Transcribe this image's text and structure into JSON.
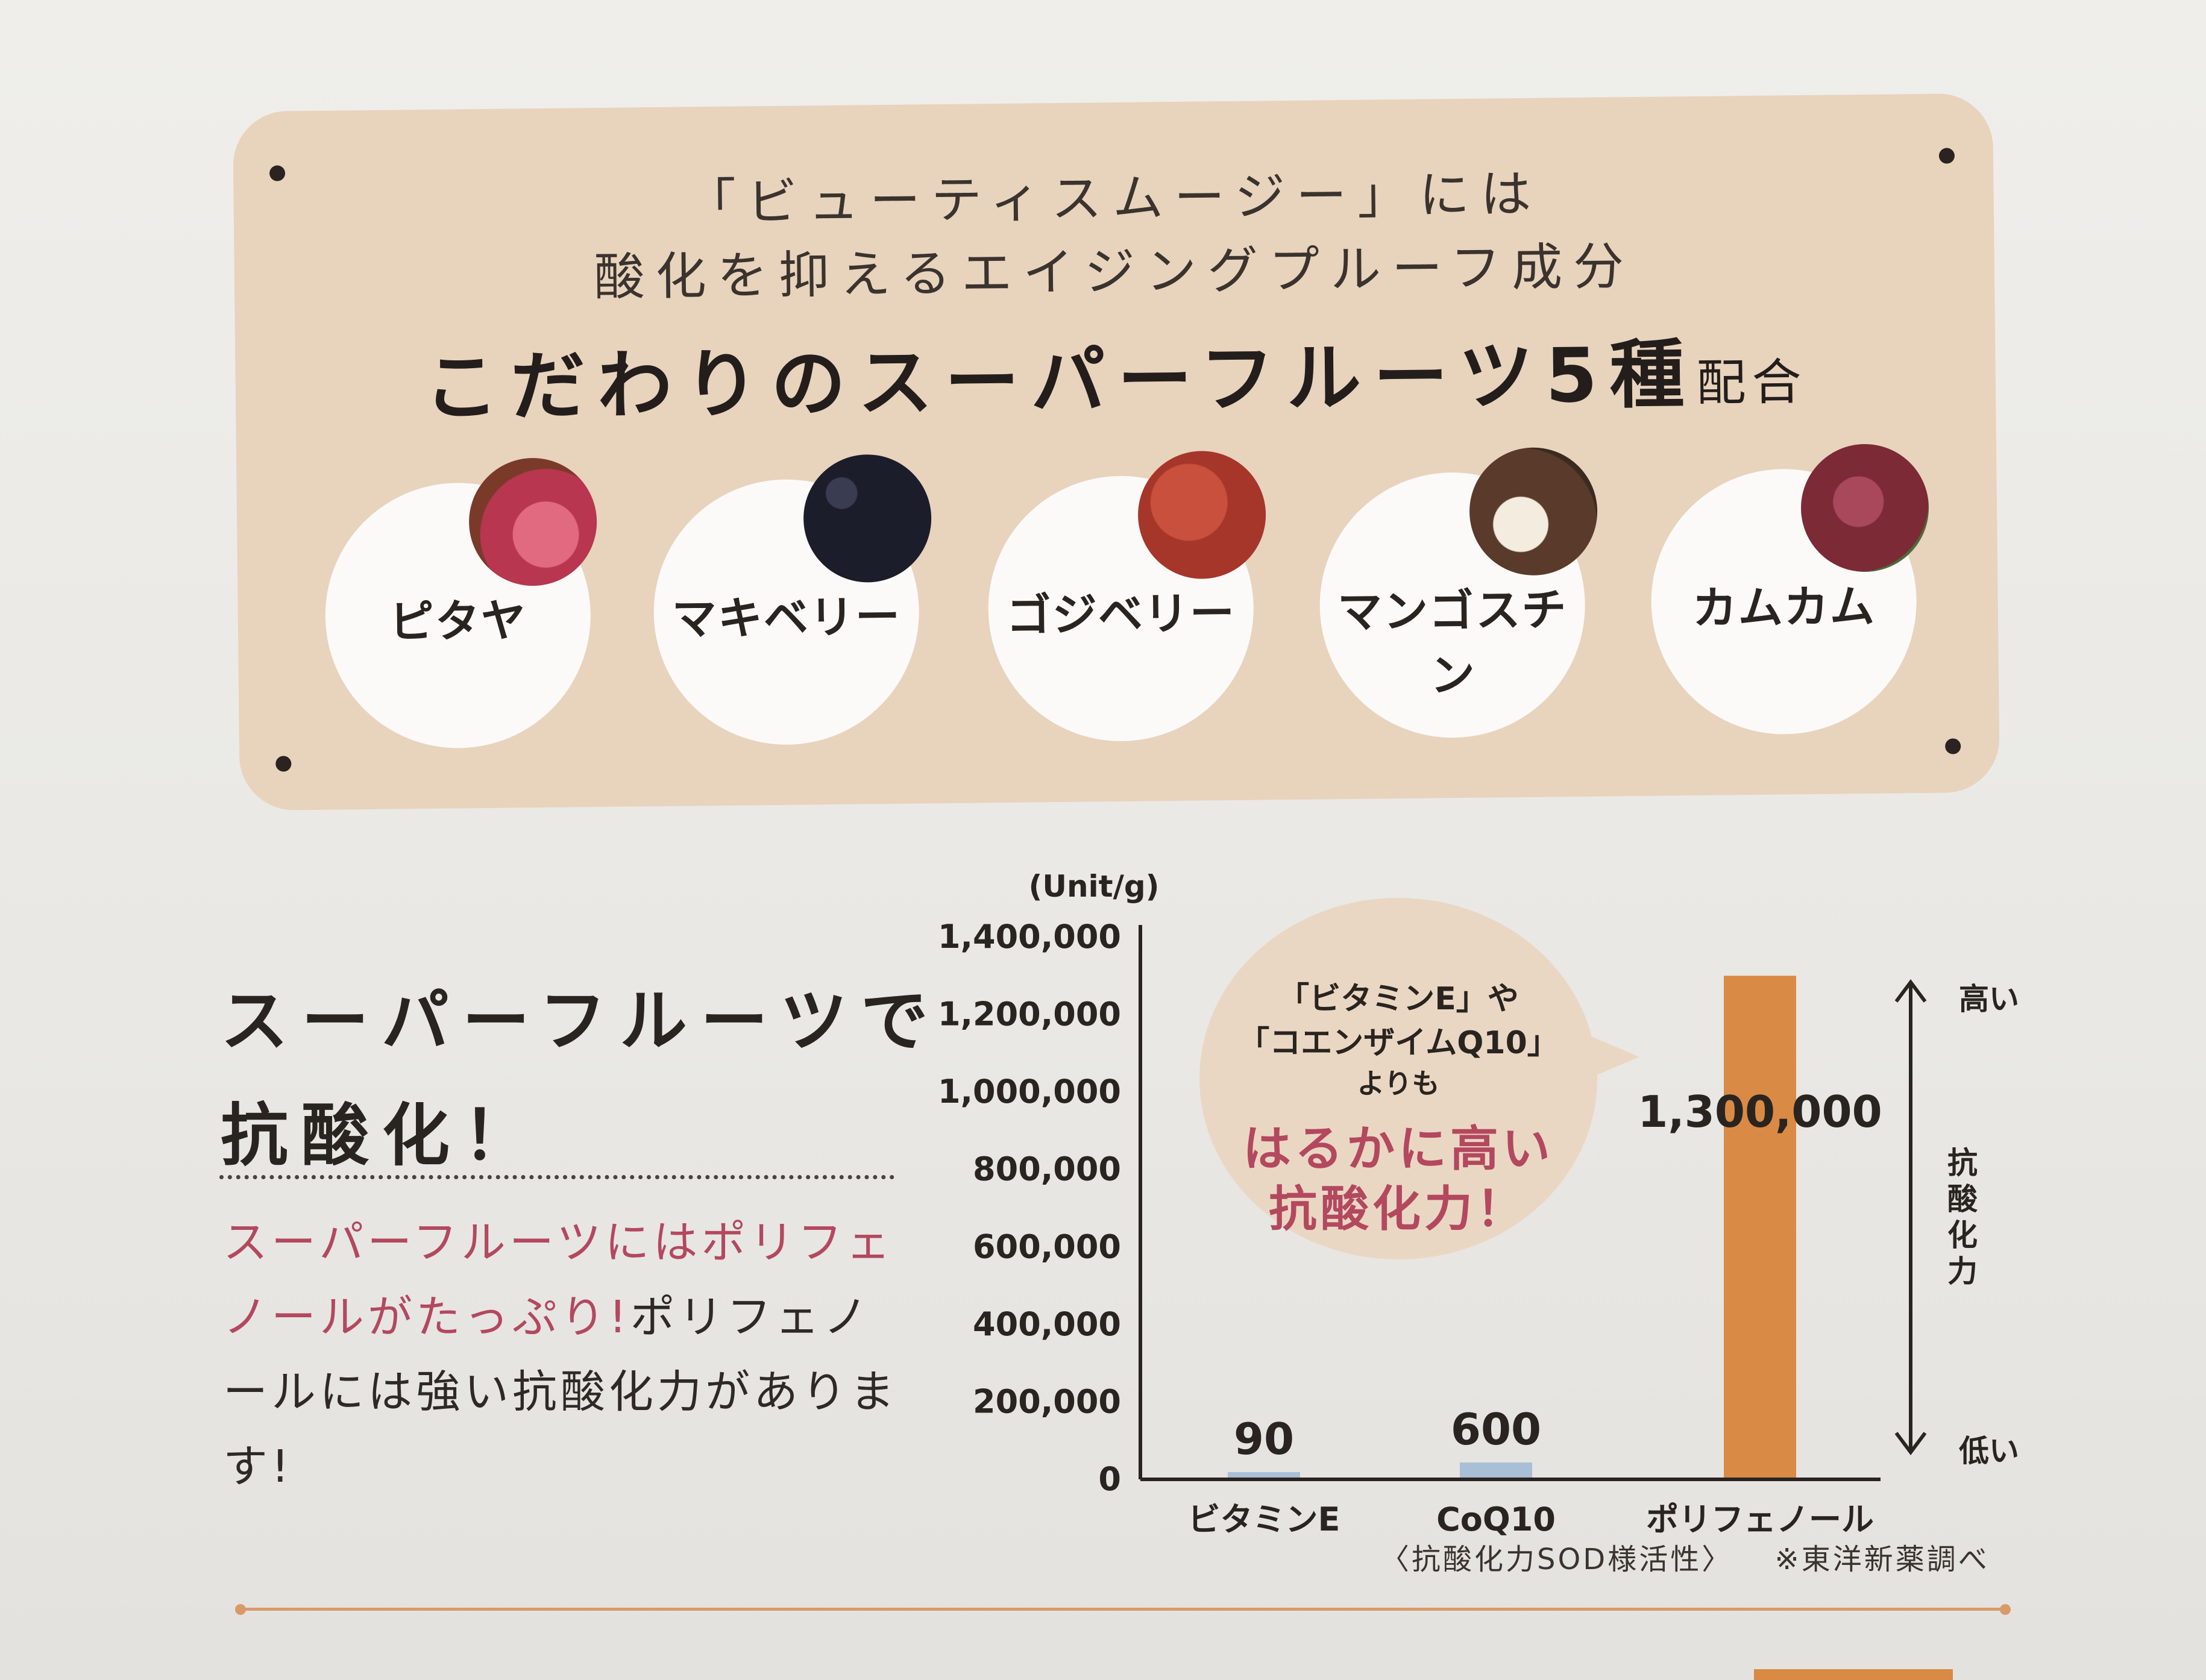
{
  "panel": {
    "intro_line1": "「ビューティスムージー」には",
    "intro_line2": "酸化を抑えるエイジングプルーフ成分",
    "headline_main": "こだわりのスーパーフルーツ5種",
    "headline_suffix": "配合",
    "fruits": [
      {
        "label": "ピタヤ",
        "photo_color": "#b8364f"
      },
      {
        "label": "マキベリー",
        "photo_color": "#1c1d2a"
      },
      {
        "label": "ゴジベリー",
        "photo_color": "#a6362a"
      },
      {
        "label": "マンゴスチン",
        "photo_color": "#5a3a2a"
      },
      {
        "label": "カムカム",
        "photo_color": "#7b2a36"
      }
    ]
  },
  "left": {
    "heading_line1": "スーパーフルーツで",
    "heading_line2": "抗酸化！",
    "body_pink": "スーパーフルーツにはポリフェノールがたっぷり!",
    "body_rest": "ポリフェノールには強い抗酸化力があります!"
  },
  "bubble": {
    "line1": "「ビタミンE」や",
    "line2": "「コエンザイムQ10」",
    "line3": "よりも",
    "line4": "はるかに高い",
    "line5": "抗酸化力！"
  },
  "arrow": {
    "high": "高い",
    "low": "低い",
    "title": "抗酸化力"
  },
  "notes": {
    "caption": "〈抗酸化力SOD様活性〉",
    "source": "※東洋新薬調べ"
  },
  "colors": {
    "panel": "#e8d3bd",
    "bar_small": "#a9bfd6",
    "bar_large": "#d98a45",
    "accent_pink": "#b3485f"
  },
  "chart_data": {
    "type": "bar",
    "unit_label": "(Unit/g)",
    "categories": [
      "ビタミンE",
      "CoQ10",
      "ポリフェノール"
    ],
    "values": [
      90,
      600,
      1300000
    ],
    "value_labels": [
      "90",
      "600",
      "1,300,000"
    ],
    "ylim": [
      0,
      1400000
    ],
    "yticks": [
      0,
      200000,
      400000,
      600000,
      800000,
      1000000,
      1200000,
      1400000
    ],
    "ytick_labels": [
      "0",
      "200,000",
      "400,000",
      "600,000",
      "800,000",
      "1,000,000",
      "1,200,000",
      "1,400,000"
    ],
    "grid": false
  }
}
